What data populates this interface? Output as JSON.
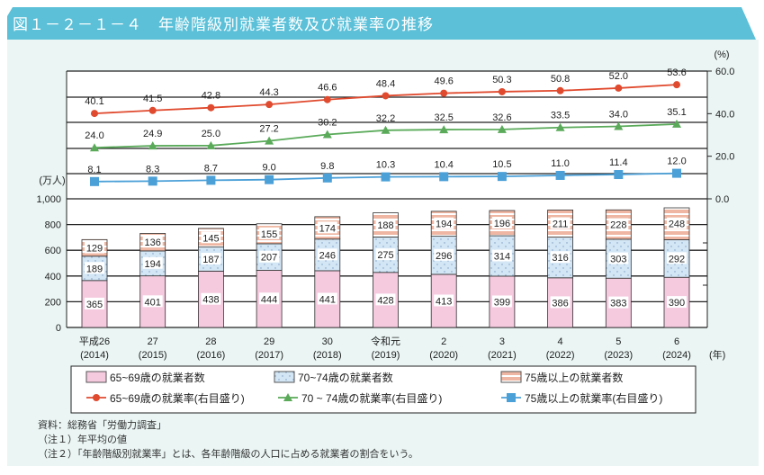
{
  "title": "図１－２－１－４　年齢階級別就業者数及び就業率の推移",
  "chart_data": {
    "type": "bar+line",
    "categories": [
      {
        "label": "平成26",
        "year": "(2014)"
      },
      {
        "label": "27",
        "year": "(2015)"
      },
      {
        "label": "28",
        "year": "(2016)"
      },
      {
        "label": "29",
        "year": "(2017)"
      },
      {
        "label": "30",
        "year": "(2018)"
      },
      {
        "label": "令和元",
        "year": "(2019)"
      },
      {
        "label": "2",
        "year": "(2020)"
      },
      {
        "label": "3",
        "year": "(2021)"
      },
      {
        "label": "4",
        "year": "(2022)"
      },
      {
        "label": "5",
        "year": "(2023)"
      },
      {
        "label": "6",
        "year": "(2024)"
      }
    ],
    "x_unit": "(年)",
    "left_axis": {
      "unit": "(万人)",
      "ylim": [
        0,
        1000
      ],
      "ticks": [
        "0",
        "200",
        "400",
        "600",
        "800",
        "1,000"
      ]
    },
    "right_axis": {
      "unit": "(%)",
      "ylim": [
        0,
        60
      ],
      "ticks": [
        "0.0",
        "20.0",
        "40.0",
        "60.0"
      ]
    },
    "bar_series": [
      {
        "name": "65~69歳の就業者数",
        "color": "#f5c9de",
        "pattern": "solid",
        "values": [
          365,
          401,
          438,
          444,
          441,
          428,
          413,
          399,
          386,
          383,
          390
        ]
      },
      {
        "name": "70~74歳の就業者数",
        "color": "#d3e6f5",
        "pattern": "dots",
        "values": [
          189,
          194,
          187,
          207,
          246,
          275,
          296,
          314,
          316,
          303,
          292
        ]
      },
      {
        "name": "75歳以上の就業者数",
        "color": "#efb7a3",
        "pattern": "stripes",
        "values": [
          129,
          136,
          145,
          155,
          174,
          188,
          194,
          196,
          211,
          228,
          248
        ]
      }
    ],
    "line_series": [
      {
        "name": "65~69歳の就業率(右目盛り)",
        "color": "#e04a2e",
        "marker": "circle",
        "values": [
          40.1,
          41.5,
          42.8,
          44.3,
          46.6,
          48.4,
          49.6,
          50.3,
          50.8,
          52.0,
          53.6
        ]
      },
      {
        "name": "70 ~ 74歳の就業率(右目盛り)",
        "color": "#5aaa5a",
        "marker": "triangle",
        "values": [
          24.0,
          24.9,
          25.0,
          27.2,
          30.2,
          32.2,
          32.5,
          32.6,
          33.5,
          34.0,
          35.1
        ]
      },
      {
        "name": "75歳以上の就業率(右目盛り)",
        "color": "#4ba0d8",
        "marker": "square",
        "values": [
          8.1,
          8.3,
          8.7,
          9.0,
          9.8,
          10.3,
          10.4,
          10.5,
          11.0,
          11.4,
          12.0
        ]
      }
    ],
    "legend_placement": "bottom"
  },
  "notes": [
    "資料：総務省「労働力調査」",
    "（注１）年平均の値",
    "（注２）「年齢階級別就業率」とは、各年齢階級の人口に占める就業者の割合をいう。"
  ]
}
